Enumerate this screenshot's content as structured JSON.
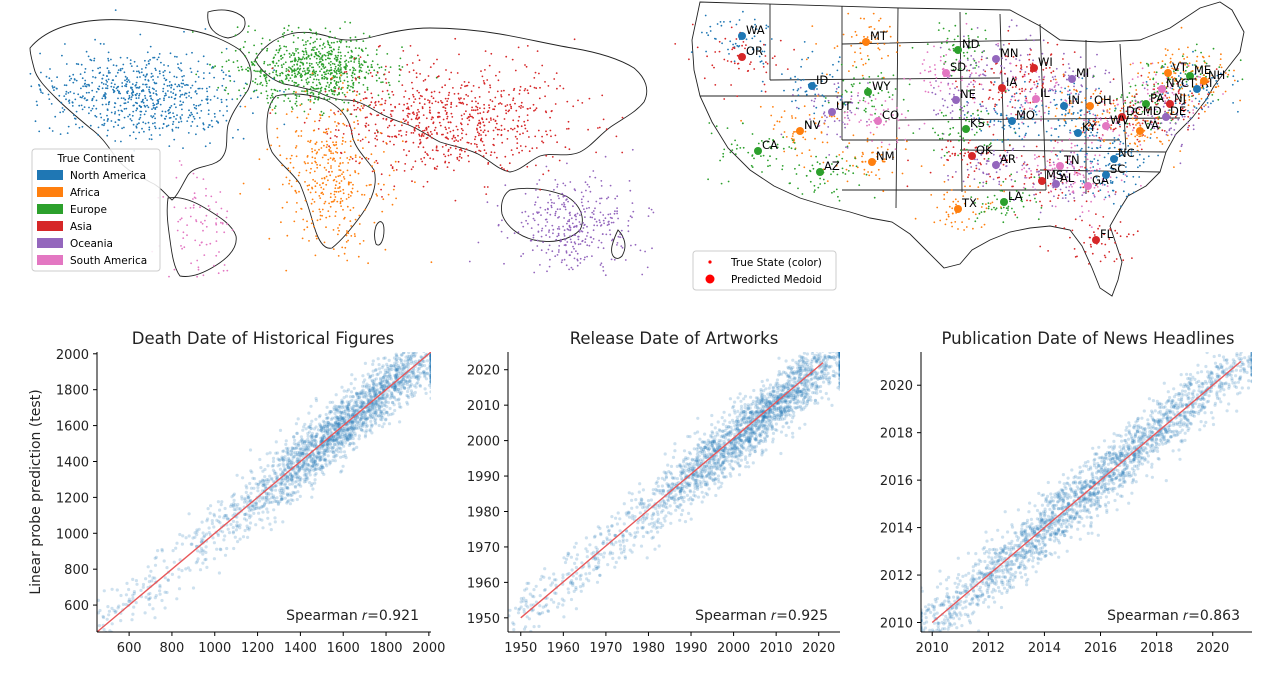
{
  "colors": {
    "north_america": "#1f77b4",
    "africa": "#ff7f0e",
    "europe": "#2ca02c",
    "asia": "#d62728",
    "oceania": "#9467bd",
    "south_america": "#e377c2",
    "scatter_point": "#1f77b4",
    "fit_line": "#e8585a",
    "predicted_medoid": "#ff0000"
  },
  "world_map": {
    "legend_title": "True Continent",
    "legend_items": [
      "North America",
      "Africa",
      "Europe",
      "Asia",
      "Oceania",
      "South America"
    ]
  },
  "us_map": {
    "legend_items": [
      "True State (color)",
      "Predicted Medoid"
    ],
    "state_labels": [
      "WA",
      "MT",
      "ND",
      "OR",
      "MN",
      "SD",
      "ID",
      "VT",
      "ME",
      "WI",
      "MI",
      "NYCT",
      "RI",
      "NH",
      "WY",
      "IA",
      "NE",
      "IL",
      "IN",
      "OH",
      "PA",
      "NJ",
      "UT",
      "CO",
      "MO",
      "NV",
      "KS",
      "DCMD",
      "DE",
      "WV",
      "KY",
      "VA",
      "CA",
      "OK",
      "AR",
      "TN",
      "NC",
      "NM",
      "AZ",
      "MS",
      "AL",
      "GA",
      "SC",
      "TX",
      "LA",
      "FL"
    ]
  },
  "chart_data": [
    {
      "type": "scatter",
      "title": "Death Date of Historical Figures",
      "xlabel": "",
      "ylabel": "Linear probe prediction (test)",
      "xlim": [
        450,
        2010
      ],
      "ylim": [
        450,
        2010
      ],
      "xticks": [
        "600",
        "800",
        "1000",
        "1200",
        "1400",
        "1600",
        "1800",
        "2000"
      ],
      "yticks": [
        "600",
        "800",
        "1000",
        "1200",
        "1400",
        "1600",
        "1800",
        "2000"
      ],
      "fit_line": [
        [
          450,
          450
        ],
        [
          2010,
          2010
        ]
      ],
      "annotation": "Spearman 𝑟=0.921",
      "x_center": 1620,
      "x_spread": 260
    },
    {
      "type": "scatter",
      "title": "Release Date of Artworks",
      "xlabel": "",
      "ylabel": "",
      "xlim": [
        1947,
        2025
      ],
      "ylim": [
        1946,
        2025
      ],
      "xticks": [
        "1950",
        "1960",
        "1970",
        "1980",
        "1990",
        "2000",
        "2010",
        "2020"
      ],
      "yticks": [
        "1950",
        "1960",
        "1970",
        "1980",
        "1990",
        "2000",
        "2010",
        "2020"
      ],
      "fit_line": [
        [
          1950,
          1950
        ],
        [
          2021,
          2022
        ]
      ],
      "annotation": "Spearman 𝑟=0.925",
      "x_center": 2005,
      "x_spread": 14
    },
    {
      "type": "scatter",
      "title": "Publication Date of News Headlines",
      "xlabel": "",
      "ylabel": "",
      "xlim": [
        2009.6,
        2021.4
      ],
      "ylim": [
        2009.6,
        2021.4
      ],
      "xticks": [
        "2010",
        "2012",
        "2014",
        "2016",
        "2018",
        "2020"
      ],
      "yticks": [
        "2010",
        "2012",
        "2014",
        "2016",
        "2018",
        "2020"
      ],
      "fit_line": [
        [
          2010,
          2010
        ],
        [
          2021,
          2021
        ]
      ],
      "annotation": "Spearman 𝑟=0.863",
      "x_center": 2015.5,
      "x_spread": 3.2
    }
  ]
}
